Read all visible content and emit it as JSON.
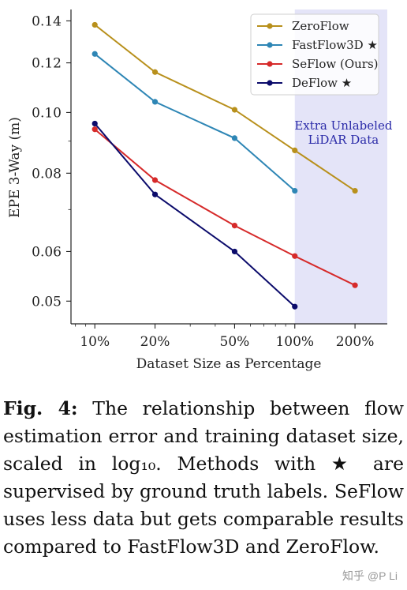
{
  "chart_data": {
    "type": "line",
    "x": [
      10,
      20,
      50,
      100,
      200
    ],
    "categories": [
      "10%",
      "20%",
      "50%",
      "100%",
      "200%"
    ],
    "xlabel": "Dataset Size as Percentage",
    "ylabel": "EPE 3-Way (m)",
    "xscale": "log",
    "yscale": "log",
    "xlim": [
      7.6,
      290
    ],
    "ylim": [
      0.046,
      0.146
    ],
    "yticks": [
      0.05,
      0.06,
      0.08,
      0.1,
      0.12,
      0.14
    ],
    "ytick_labels": [
      "0.05",
      "0.06",
      "0.08",
      "0.10",
      "0.12",
      "0.14"
    ],
    "grid": false,
    "legend_position": "top-right",
    "series": [
      {
        "name": "ZeroFlow",
        "color": "#b8901c",
        "x": [
          10,
          20,
          50,
          100,
          200
        ],
        "y": [
          0.138,
          0.116,
          0.101,
          0.087,
          0.075
        ]
      },
      {
        "name": "FastFlow3D ★",
        "color": "#2e86b5",
        "x": [
          10,
          20,
          50,
          100
        ],
        "y": [
          0.124,
          0.104,
          0.091,
          0.075
        ]
      },
      {
        "name": "SeFlow (Ours)",
        "color": "#d62a2a",
        "x": [
          10,
          20,
          50,
          100,
          200
        ],
        "y": [
          0.094,
          0.078,
          0.066,
          0.059,
          0.053
        ]
      },
      {
        "name": "DeFlow ★",
        "color": "#0b0b6b",
        "x": [
          10,
          20,
          50,
          100
        ],
        "y": [
          0.096,
          0.074,
          0.06,
          0.049
        ]
      }
    ],
    "shaded_region": {
      "x_from": 100,
      "x_to": 290,
      "label": "Extra Unlabeled LiDAR Data",
      "color": "#e4e4f8"
    }
  },
  "caption": {
    "prefix": "Fig. 4:",
    "text": "The relationship between flow estimation error and training dataset size, scaled in log₁₀. Methods with ★ are supervised by ground truth labels. SeFlow uses less data but gets comparable results compared to FastFlow3D and ZeroFlow."
  },
  "watermark": "知乎 @P Li"
}
